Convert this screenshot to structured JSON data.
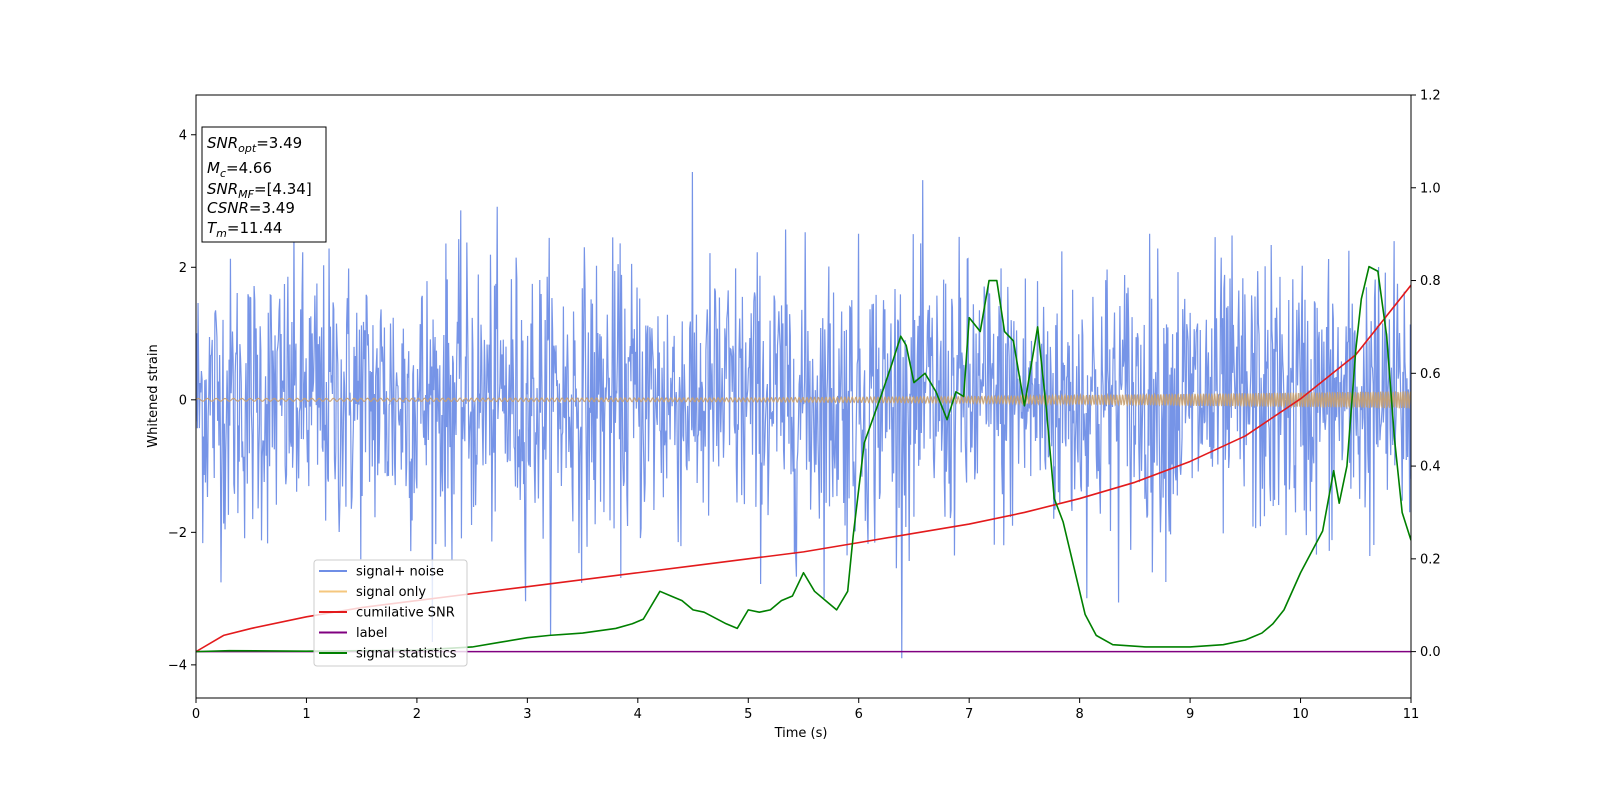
{
  "chart_data": {
    "type": "line",
    "xlabel": "Time (s)",
    "ylabel": "Whitened strain",
    "xlim": [
      0,
      11
    ],
    "ylim_left": [
      -4.5,
      4.6
    ],
    "ylim_right": [
      -0.1,
      1.2
    ],
    "x_ticks": [
      "0",
      "1",
      "2",
      "3",
      "4",
      "5",
      "6",
      "7",
      "8",
      "9",
      "10",
      "11"
    ],
    "y_left_ticks": [
      "4",
      "2",
      "0",
      "−2",
      "−4"
    ],
    "y_right_ticks": [
      "1.2",
      "1.0",
      "0.8",
      "0.6",
      "0.4",
      "0.2",
      "0.0"
    ],
    "info_box": {
      "snr_opt": {
        "symbol": "SNR",
        "sub": "opt",
        "value": "=3.49"
      },
      "mc": {
        "symbol": "M",
        "sub": "c",
        "value": "=4.66"
      },
      "snr_mf": {
        "symbol": "SNR",
        "sub": "MF",
        "value": "=[4.34]"
      },
      "csnr": {
        "symbol": "CSNR",
        "sub": "",
        "value": "=3.49"
      },
      "tm": {
        "symbol": "T",
        "sub": "m",
        "value": "=11.44"
      }
    },
    "legend": {
      "placement": "lower-left",
      "entries": [
        {
          "label": "signal+ noise",
          "color": "#6f8ee6"
        },
        {
          "label": "signal only",
          "color": "#f5c77e"
        },
        {
          "label": "cumilative SNR",
          "color": "#e31a1c"
        },
        {
          "label": "label",
          "color": "#800080"
        },
        {
          "label": "signal statistics",
          "color": "#008000"
        }
      ]
    },
    "series": [
      {
        "name": "signal+ noise",
        "axis": "left",
        "color": "#6f8ee6",
        "description": "whitened noise spanning roughly -3.5 to 3.8 across 0–11 s",
        "noise_std": 1.0,
        "x_range": [
          0,
          11
        ],
        "n_points": 1800
      },
      {
        "name": "signal only",
        "axis": "left",
        "color": "#c8a070",
        "x": [
          0,
          5,
          6,
          7,
          8,
          9,
          10,
          11
        ],
        "amplitude": [
          0.02,
          0.03,
          0.04,
          0.05,
          0.07,
          0.09,
          0.11,
          0.13
        ]
      },
      {
        "name": "cumilative SNR",
        "axis": "right",
        "color": "#e31a1c",
        "x": [
          0,
          0.25,
          0.5,
          1,
          1.5,
          2,
          2.5,
          3,
          3.5,
          4,
          4.5,
          5,
          5.5,
          6,
          6.5,
          7,
          7.5,
          8,
          8.5,
          9,
          9.5,
          10,
          10.5,
          11
        ],
        "y": [
          0.0,
          0.035,
          0.05,
          0.075,
          0.095,
          0.11,
          0.125,
          0.14,
          0.155,
          0.17,
          0.185,
          0.2,
          0.215,
          0.235,
          0.255,
          0.275,
          0.3,
          0.33,
          0.365,
          0.41,
          0.465,
          0.545,
          0.64,
          0.79
        ]
      },
      {
        "name": "label",
        "axis": "right",
        "color": "#800080",
        "x": [
          0,
          11
        ],
        "y": [
          0.0,
          0.0
        ]
      },
      {
        "name": "signal statistics",
        "axis": "right",
        "color": "#008000",
        "x": [
          0,
          0.3,
          1,
          1.5,
          2,
          2.5,
          2.75,
          3,
          3.2,
          3.5,
          3.8,
          3.95,
          4.05,
          4.2,
          4.3,
          4.4,
          4.5,
          4.6,
          4.8,
          4.9,
          5,
          5.1,
          5.2,
          5.3,
          5.4,
          5.5,
          5.6,
          5.7,
          5.8,
          5.9,
          5.95,
          6.05,
          6.2,
          6.3,
          6.38,
          6.43,
          6.5,
          6.6,
          6.7,
          6.8,
          6.88,
          6.95,
          7.0,
          7.1,
          7.18,
          7.25,
          7.32,
          7.4,
          7.5,
          7.62,
          7.7,
          7.77,
          7.85,
          7.95,
          8.05,
          8.15,
          8.3,
          8.6,
          9.0,
          9.3,
          9.5,
          9.65,
          9.75,
          9.85,
          10.0,
          10.2,
          10.3,
          10.35,
          10.42,
          10.5,
          10.55,
          10.62,
          10.7,
          10.78,
          10.85,
          10.92,
          11.0
        ],
        "y": [
          0.0,
          0.002,
          0.001,
          0.002,
          0.003,
          0.01,
          0.02,
          0.03,
          0.035,
          0.04,
          0.05,
          0.06,
          0.07,
          0.13,
          0.12,
          0.11,
          0.09,
          0.085,
          0.06,
          0.05,
          0.09,
          0.085,
          0.09,
          0.11,
          0.12,
          0.17,
          0.13,
          0.11,
          0.09,
          0.13,
          0.25,
          0.45,
          0.55,
          0.62,
          0.68,
          0.66,
          0.58,
          0.6,
          0.56,
          0.5,
          0.56,
          0.55,
          0.72,
          0.69,
          0.8,
          0.8,
          0.69,
          0.67,
          0.53,
          0.7,
          0.52,
          0.33,
          0.28,
          0.18,
          0.08,
          0.035,
          0.015,
          0.01,
          0.01,
          0.015,
          0.025,
          0.04,
          0.06,
          0.09,
          0.17,
          0.26,
          0.39,
          0.32,
          0.4,
          0.65,
          0.76,
          0.83,
          0.82,
          0.68,
          0.46,
          0.3,
          0.24
        ]
      }
    ]
  }
}
